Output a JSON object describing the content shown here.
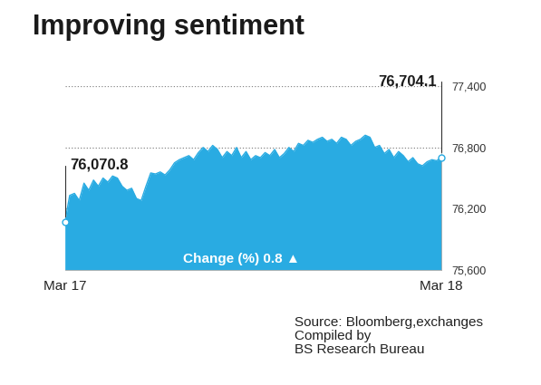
{
  "chart_data": {
    "type": "area",
    "title": "Improving sentiment",
    "categories": [
      "Mar 17",
      null,
      null,
      null,
      null,
      null,
      null,
      null,
      null,
      null,
      null,
      null,
      null,
      null,
      null,
      null,
      null,
      null,
      null,
      null,
      null,
      null,
      null,
      null,
      null,
      null,
      null,
      null,
      null,
      null,
      null,
      null,
      null,
      null,
      null,
      null,
      null,
      null,
      null,
      null,
      null,
      null,
      null,
      null,
      null,
      null,
      null,
      null,
      null,
      null,
      null,
      null,
      null,
      null,
      null,
      null,
      null,
      null,
      null,
      null,
      null,
      null,
      null,
      null,
      null,
      null,
      null,
      null,
      null,
      null,
      null,
      null,
      null,
      null,
      null,
      null,
      null,
      null,
      null,
      "Mar 18"
    ],
    "values": [
      76070.8,
      76330,
      76350,
      76280,
      76450,
      76380,
      76480,
      76420,
      76500,
      76460,
      76520,
      76500,
      76420,
      76380,
      76400,
      76300,
      76280,
      76420,
      76550,
      76540,
      76560,
      76530,
      76580,
      76650,
      76680,
      76700,
      76720,
      76680,
      76750,
      76800,
      76760,
      76820,
      76780,
      76700,
      76760,
      76720,
      76800,
      76700,
      76760,
      76680,
      76720,
      76700,
      76750,
      76720,
      76780,
      76700,
      76740,
      76800,
      76760,
      76840,
      76820,
      76870,
      76850,
      76880,
      76900,
      76860,
      76880,
      76840,
      76900,
      76880,
      76820,
      76860,
      76880,
      76920,
      76900,
      76800,
      76820,
      76740,
      76780,
      76700,
      76760,
      76720,
      76660,
      76700,
      76640,
      76620,
      76660,
      76680,
      76670,
      76704.1
    ],
    "color": "#29abe2",
    "ylim": [
      75600,
      77400
    ],
    "yticks": [
      {
        "value": 75600,
        "label": "75,600"
      },
      {
        "value": 76200,
        "label": "76,200"
      },
      {
        "value": 76800,
        "label": "76,800"
      },
      {
        "value": 77400,
        "label": "77,400"
      }
    ],
    "grid": true,
    "annotations": [
      {
        "x": "Mar 17",
        "y": 76070.8,
        "text": "76,070.8"
      },
      {
        "x": "Mar 18",
        "y": 76704.1,
        "text": "76,704.1"
      },
      {
        "text": "Change (%) 0.8 ▲"
      }
    ],
    "source": "Source: Bloomberg,exchanges\nCompiled by\nBS Research Bureau"
  }
}
